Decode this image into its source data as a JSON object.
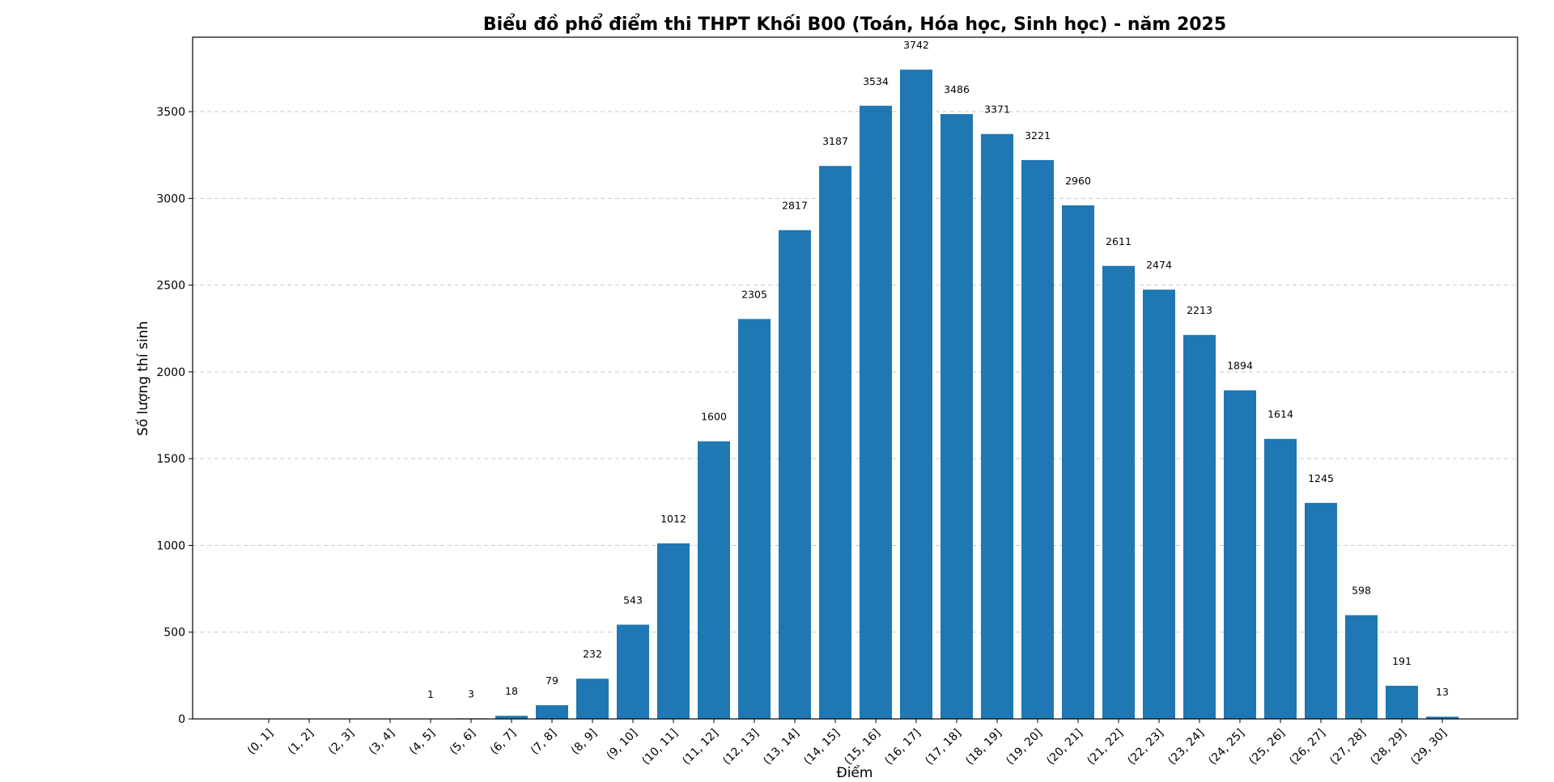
{
  "chart_data": {
    "type": "bar",
    "title": "Biểu đồ phổ điểm thi THPT Khối B00 (Toán, Hóa học, Sinh học) - năm 2025",
    "xlabel": "Điểm",
    "ylabel": "Số lượng thí sinh",
    "categories": [
      "(0, 1]",
      "(1, 2]",
      "(2, 3]",
      "(3, 4]",
      "(4, 5]",
      "(5, 6]",
      "(6, 7]",
      "(7, 8]",
      "(8, 9]",
      "(9, 10]",
      "(10, 11]",
      "(11, 12]",
      "(12, 13]",
      "(13, 14]",
      "(14, 15]",
      "(15, 16]",
      "(16, 17]",
      "(17, 18]",
      "(18, 19]",
      "(19, 20]",
      "(20, 21]",
      "(21, 22]",
      "(22, 23]",
      "(23, 24]",
      "(24, 25]",
      "(25, 26]",
      "(26, 27]",
      "(27, 28]",
      "(28, 29]",
      "(29, 30]"
    ],
    "values": [
      0,
      0,
      0,
      0,
      1,
      3,
      18,
      79,
      232,
      543,
      1012,
      1600,
      2305,
      2817,
      3187,
      3534,
      3742,
      3486,
      3371,
      3221,
      2960,
      2611,
      2474,
      2213,
      1894,
      1614,
      1245,
      598,
      191,
      13
    ],
    "data_labels": [
      "",
      "",
      "",
      "",
      "1",
      "3",
      "18",
      "79",
      "232",
      "543",
      "1012",
      "1600",
      "2305",
      "2817",
      "3187",
      "3534",
      "3742",
      "3486",
      "3371",
      "3221",
      "2960",
      "2611",
      "2474",
      "2213",
      "1894",
      "1614",
      "1245",
      "598",
      "191",
      "13"
    ],
    "yticks": [
      0,
      500,
      1000,
      1500,
      2000,
      2500,
      3000,
      3500
    ],
    "ylim": [
      0,
      3929
    ],
    "grid": "y-dashed",
    "bar_color": "#1f77b4"
  }
}
